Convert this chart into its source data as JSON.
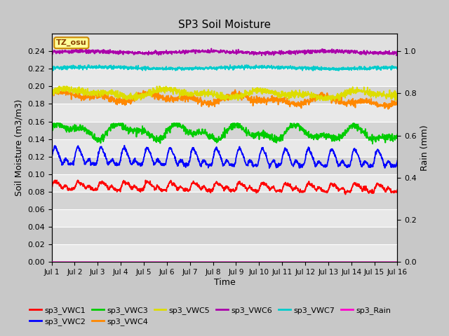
{
  "title": "SP3 Soil Moisture",
  "xlabel": "Time",
  "ylabel_left": "Soil Moisture (m3/m3)",
  "ylabel_right": "Rain (mm)",
  "ylim_left": [
    0.0,
    0.26
  ],
  "ylim_right": [
    0.0,
    1.0833
  ],
  "fig_bg_color": "#c8c8c8",
  "plot_bg_color": "#e0e0e0",
  "tz_label": "TZ_osu",
  "legend_entries": [
    {
      "label": "sp3_VWC1",
      "color": "#ff0000"
    },
    {
      "label": "sp3_VWC2",
      "color": "#0000ff"
    },
    {
      "label": "sp3_VWC3",
      "color": "#00cc00"
    },
    {
      "label": "sp3_VWC4",
      "color": "#ff8800"
    },
    {
      "label": "sp3_VWC5",
      "color": "#dddd00"
    },
    {
      "label": "sp3_VWC6",
      "color": "#aa00aa"
    },
    {
      "label": "sp3_VWC7",
      "color": "#00cccc"
    },
    {
      "label": "sp3_Rain",
      "color": "#ff00cc"
    }
  ],
  "x_tick_labels": [
    "Jul 1",
    "Jul 2",
    "Jul 3",
    "Jul 4",
    "Jul 5",
    "Jul 6",
    "Jul 7",
    "Jul 8",
    "Jul 9",
    "Jul 10",
    "Jul 11",
    "Jul 12",
    "Jul 13",
    "Jul 14",
    "Jul 15",
    "Jul 16"
  ],
  "yticks_left": [
    0.0,
    0.02,
    0.04,
    0.06,
    0.08,
    0.1,
    0.12,
    0.14,
    0.16,
    0.18,
    0.2,
    0.22,
    0.24
  ],
  "yticks_right": [
    0.0,
    0.2,
    0.4,
    0.6,
    0.8,
    1.0
  ],
  "n_points": 1440,
  "band_colors": [
    "#e8e8e8",
    "#d4d4d4"
  ]
}
